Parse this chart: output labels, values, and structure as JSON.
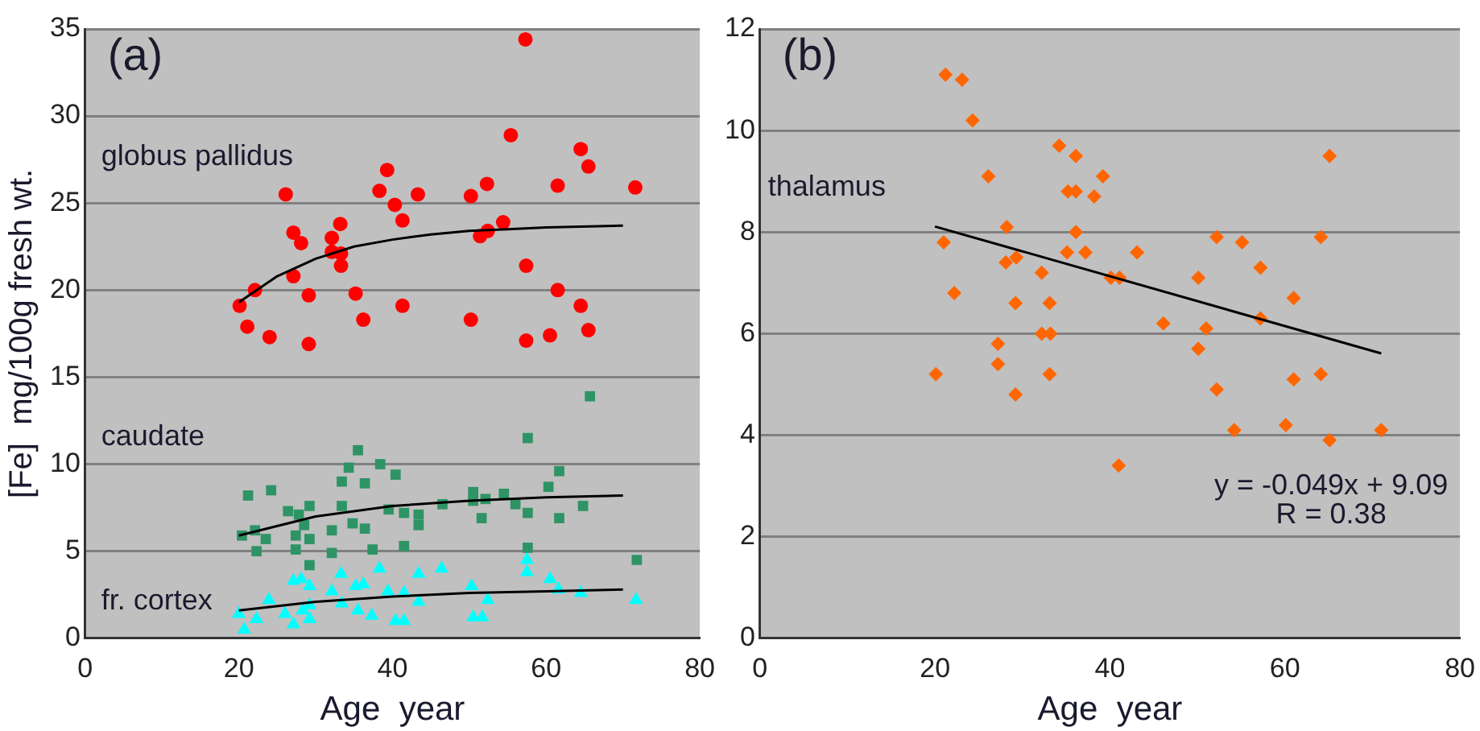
{
  "chart_data": [
    {
      "type": "scatter",
      "title": "(a)",
      "xlabel": "Age  year",
      "ylabel": "[Fe]  mg/100g fresh wt.",
      "xlim": [
        0,
        80
      ],
      "xticks": [
        0,
        20,
        40,
        60,
        80
      ],
      "ylim": [
        0,
        35
      ],
      "yticks": [
        0,
        5,
        10,
        15,
        20,
        25,
        30,
        35
      ],
      "grid": "y",
      "series": [
        {
          "name": "globus pallidus",
          "color": "#ff0000",
          "marker": "circle",
          "x": [
            20.1,
            21.1,
            22.1,
            24.0,
            26.1,
            27.1,
            27.1,
            28.1,
            29.1,
            29.1,
            32.1,
            32.1,
            33.2,
            33.3,
            33.3,
            35.2,
            36.2,
            38.3,
            39.3,
            40.3,
            41.3,
            41.3,
            43.3,
            50.2,
            50.2,
            52.3,
            51.4,
            52.4,
            54.4,
            55.4,
            57.3,
            57.4,
            57.4,
            60.5,
            61.5,
            61.5,
            64.5,
            65.5,
            64.5,
            65.5,
            71.6
          ],
          "values": [
            19.1,
            17.9,
            20.0,
            17.3,
            25.5,
            23.3,
            20.8,
            22.7,
            19.7,
            16.9,
            23.0,
            22.2,
            23.8,
            22.1,
            21.4,
            19.8,
            18.3,
            25.7,
            26.9,
            24.9,
            24.0,
            19.1,
            25.5,
            25.4,
            18.3,
            26.1,
            23.1,
            23.4,
            23.9,
            28.9,
            34.4,
            21.4,
            17.1,
            17.4,
            26.0,
            20.0,
            28.1,
            27.1,
            19.1,
            17.7,
            25.9
          ]
        },
        {
          "name": "caudate",
          "color": "#2e9465",
          "marker": "square",
          "x": [
            21.2,
            24.2,
            20.4,
            22.1,
            23.5,
            22.3,
            26.4,
            27.8,
            29.2,
            27.4,
            29.2,
            27.4,
            29.2,
            28.5,
            32.1,
            32.1,
            33.4,
            33.4,
            34.3,
            35.5,
            36.4,
            34.8,
            36.4,
            37.4,
            38.4,
            40.4,
            39.5,
            41.5,
            41.5,
            43.4,
            43.4,
            46.5,
            50.5,
            50.5,
            51.6,
            52.1,
            54.5,
            56.0,
            57.6,
            57.6,
            57.6,
            60.3,
            61.7,
            61.7,
            64.8,
            65.7,
            71.8
          ],
          "values": [
            8.2,
            8.5,
            5.9,
            6.2,
            5.7,
            5.0,
            7.3,
            7.1,
            7.6,
            5.9,
            5.7,
            5.1,
            4.2,
            6.5,
            6.2,
            4.9,
            7.6,
            9.0,
            9.8,
            10.8,
            8.9,
            6.6,
            6.3,
            5.1,
            10.0,
            9.4,
            7.4,
            7.2,
            5.3,
            6.5,
            7.1,
            7.7,
            8.4,
            7.9,
            6.9,
            8.0,
            8.3,
            7.7,
            11.5,
            7.2,
            5.2,
            8.7,
            9.6,
            6.9,
            7.6,
            13.9,
            4.5
          ]
        },
        {
          "name": "fr. cortex",
          "color": "#00ffff",
          "marker": "triangle",
          "x": [
            20.7,
            20.0,
            22.3,
            23.9,
            26.0,
            27.1,
            27.1,
            28.1,
            29.2,
            28.3,
            29.2,
            29.2,
            32.1,
            33.3,
            33.4,
            35.2,
            35.5,
            36.2,
            37.3,
            38.3,
            39.4,
            40.4,
            41.5,
            41.5,
            43.4,
            43.4,
            46.4,
            50.3,
            50.5,
            51.7,
            52.4,
            57.5,
            57.5,
            60.5,
            61.6,
            64.5,
            71.7
          ],
          "values": [
            0.5,
            1.4,
            1.1,
            2.2,
            1.4,
            0.8,
            3.3,
            3.4,
            3.0,
            1.6,
            1.1,
            1.9,
            2.7,
            3.7,
            2.0,
            3.0,
            1.6,
            3.1,
            1.3,
            4.0,
            2.7,
            1.0,
            1.0,
            2.6,
            3.7,
            2.1,
            4.0,
            3.0,
            1.2,
            1.2,
            2.2,
            4.5,
            3.8,
            3.4,
            2.8,
            2.6,
            2.2
          ]
        },
        {
          "type": "line",
          "color": "#000000",
          "marker": "none",
          "x": [
            20,
            25,
            30,
            35,
            40,
            45,
            50,
            55,
            60,
            70
          ],
          "values": [
            19.3,
            20.8,
            21.8,
            22.5,
            22.9,
            23.2,
            23.4,
            23.5,
            23.6,
            23.7
          ]
        },
        {
          "type": "line",
          "color": "#000000",
          "marker": "none",
          "x": [
            20,
            30,
            40,
            50,
            60,
            70
          ],
          "values": [
            5.9,
            7.0,
            7.6,
            7.9,
            8.1,
            8.2
          ]
        },
        {
          "type": "line",
          "color": "#000000",
          "marker": "none",
          "x": [
            20,
            30,
            40,
            50,
            60,
            70
          ],
          "values": [
            1.6,
            2.1,
            2.4,
            2.6,
            2.7,
            2.8
          ]
        }
      ]
    },
    {
      "type": "scatter",
      "title": "(b)",
      "xlabel": "Age  year",
      "xlim": [
        0,
        80
      ],
      "xticks": [
        0,
        20,
        40,
        60,
        80
      ],
      "ylim": [
        0,
        12
      ],
      "yticks": [
        0,
        2,
        4,
        6,
        8,
        10,
        12
      ],
      "grid": "y",
      "annotations": [
        "y = -0.049x + 9.09",
        "R = 0.38"
      ],
      "series": [
        {
          "name": "thalamus",
          "color": "#ff6600",
          "marker": "diamond",
          "x": [
            21.2,
            23.1,
            24.3,
            34.2,
            36.1,
            26.1,
            39.2,
            35.2,
            36.1,
            38.2,
            28.2,
            36.1,
            21.0,
            35.1,
            37.2,
            43.1,
            28.1,
            29.3,
            32.2,
            40.1,
            41.1,
            22.2,
            29.2,
            33.1,
            32.2,
            33.2,
            27.2,
            27.2,
            20.1,
            33.1,
            29.2,
            41.0,
            46.1,
            50.1,
            51.0,
            50.1,
            52.2,
            55.1,
            57.2,
            57.2,
            52.2,
            54.2,
            61.0,
            61.0,
            60.1,
            64.1,
            64.1,
            65.1,
            65.1,
            71.0
          ],
          "values": [
            11.1,
            11.0,
            10.2,
            9.7,
            9.5,
            9.1,
            9.1,
            8.8,
            8.8,
            8.7,
            8.1,
            8.0,
            7.8,
            7.6,
            7.6,
            7.6,
            7.4,
            7.5,
            7.2,
            7.1,
            7.1,
            6.8,
            6.6,
            6.6,
            6.0,
            6.0,
            5.8,
            5.4,
            5.2,
            5.2,
            4.8,
            3.4,
            6.2,
            7.1,
            6.1,
            5.7,
            7.9,
            7.8,
            7.3,
            6.3,
            4.9,
            4.1,
            6.7,
            5.1,
            4.2,
            7.9,
            5.2,
            9.5,
            3.9,
            4.1
          ]
        },
        {
          "type": "line",
          "color": "#000000",
          "marker": "none",
          "x": [
            20,
            71
          ],
          "values": [
            8.11,
            5.61
          ]
        }
      ]
    }
  ]
}
